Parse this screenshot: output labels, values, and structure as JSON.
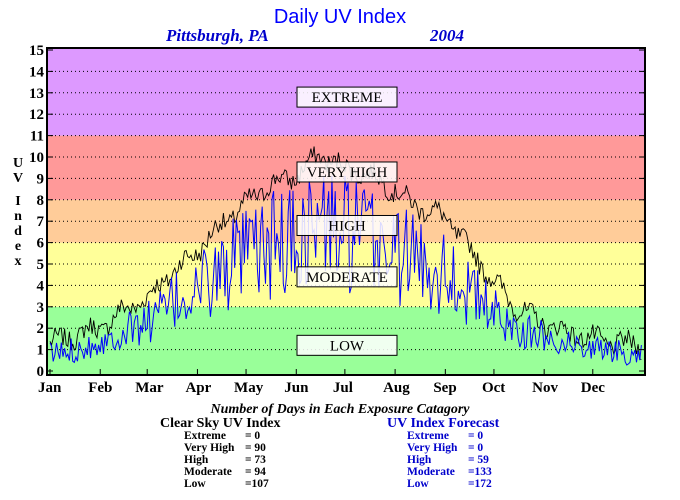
{
  "header": {
    "title": "Daily UV Index",
    "location": "Pittsburgh, PA",
    "year": "2004"
  },
  "chart_data": {
    "type": "line",
    "ylabel": "UV Index",
    "ylim": [
      0,
      15
    ],
    "y_ticks": [
      "0",
      "1",
      "2",
      "3",
      "4",
      "5",
      "6",
      "7",
      "8",
      "9",
      "10",
      "11",
      "12",
      "13",
      "14",
      "15"
    ],
    "xlim": [
      0,
      366
    ],
    "x_ticks": [
      {
        "label": "Jan",
        "day": 0
      },
      {
        "label": "Feb",
        "day": 31
      },
      {
        "label": "Mar",
        "day": 60
      },
      {
        "label": "Apr",
        "day": 91
      },
      {
        "label": "May",
        "day": 121
      },
      {
        "label": "Jun",
        "day": 152
      },
      {
        "label": "Jul",
        "day": 182
      },
      {
        "label": "Aug",
        "day": 213
      },
      {
        "label": "Sep",
        "day": 244
      },
      {
        "label": "Oct",
        "day": 274
      },
      {
        "label": "Nov",
        "day": 305
      },
      {
        "label": "Dec",
        "day": 335
      }
    ],
    "grid": "dotted horizontal",
    "bands": [
      {
        "label": "LOW",
        "from": 0,
        "to": 3,
        "color": "#99ff99",
        "label_y": 1.2
      },
      {
        "label": "MODERATE",
        "from": 3,
        "to": 6,
        "color": "#ffff99",
        "label_y": 4.4
      },
      {
        "label": "HIGH",
        "from": 6,
        "to": 8,
        "color": "#ffcc99",
        "label_y": 6.8
      },
      {
        "label": "VERY HIGH",
        "from": 8,
        "to": 11,
        "color": "#ff9999",
        "label_y": 9.3
      },
      {
        "label": "EXTREME",
        "from": 11,
        "to": 15,
        "color": "#dd99ff",
        "label_y": 12.8
      }
    ],
    "series": [
      {
        "name": "Clear Sky UV Index",
        "color": "#000000",
        "days": [
          0,
          10,
          20,
          31,
          45,
          60,
          75,
          91,
          105,
          121,
          135,
          152,
          160,
          167,
          182,
          195,
          205,
          213,
          220,
          230,
          244,
          260,
          274,
          285,
          295,
          305,
          320,
          335,
          350,
          365
        ],
        "values": [
          1.3,
          1.5,
          1.8,
          2.0,
          2.8,
          3.4,
          4.6,
          5.6,
          6.8,
          7.8,
          8.7,
          9.1,
          9.7,
          10.1,
          9.5,
          9.2,
          8.9,
          8.4,
          8.0,
          7.6,
          7.2,
          5.6,
          4.2,
          3.2,
          2.6,
          2.2,
          1.8,
          1.5,
          1.3,
          1.2
        ]
      },
      {
        "name": "UV Index Forecast",
        "color": "#0000ff",
        "days": [
          0,
          10,
          20,
          31,
          45,
          60,
          75,
          91,
          105,
          121,
          135,
          152,
          160,
          167,
          182,
          195,
          205,
          213,
          220,
          230,
          244,
          260,
          274,
          285,
          295,
          305,
          320,
          335,
          350,
          365
        ],
        "values": [
          0.8,
          0.9,
          1.1,
          1.3,
          1.8,
          2.3,
          3.1,
          3.8,
          4.6,
          5.3,
          5.8,
          6.2,
          6.6,
          6.9,
          6.4,
          6.1,
          5.9,
          5.6,
          5.4,
          5.1,
          4.7,
          3.6,
          2.7,
          2.1,
          1.8,
          1.6,
          1.3,
          1.1,
          0.9,
          0.8
        ]
      }
    ]
  },
  "stats": {
    "caption": "Number of Days in Each Exposure Catagory",
    "clear_sky": {
      "heading": "Clear Sky UV Index",
      "rows": [
        {
          "label": "Extreme",
          "value": "=  0"
        },
        {
          "label": "Very High",
          "value": "= 90"
        },
        {
          "label": "High",
          "value": "= 73"
        },
        {
          "label": "Moderate",
          "value": "= 94"
        },
        {
          "label": "Low",
          "value": "=107"
        }
      ]
    },
    "forecast": {
      "heading": "UV Index Forecast",
      "rows": [
        {
          "label": "Extreme",
          "value": "=   0"
        },
        {
          "label": "Very High",
          "value": "=   0"
        },
        {
          "label": "High",
          "value": "=  59"
        },
        {
          "label": "Moderate",
          "value": "=133"
        },
        {
          "label": "Low",
          "value": "=172"
        }
      ]
    }
  }
}
